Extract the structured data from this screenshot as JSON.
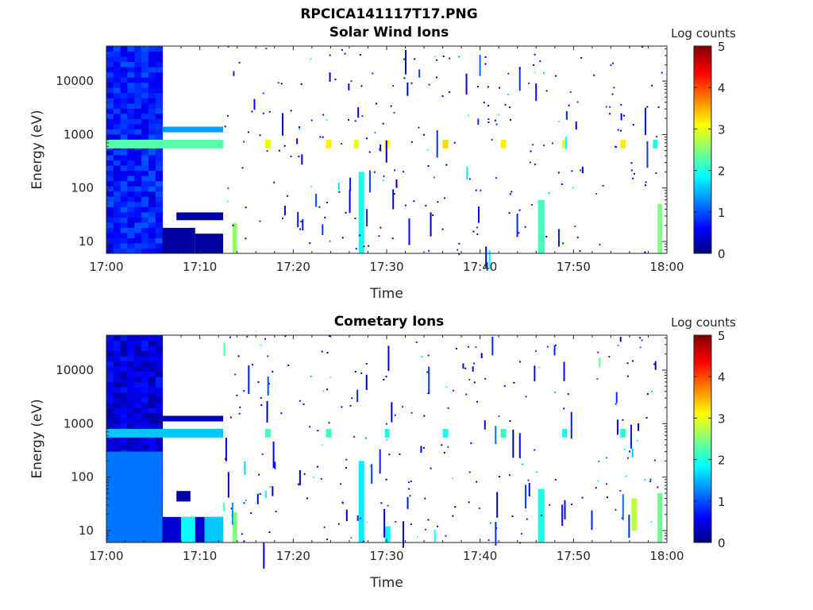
{
  "figure": {
    "title": "RPCICA141117T17.PNG"
  },
  "colors": {
    "colormap": "jet",
    "axes": "#262626",
    "background": "#ffffff"
  },
  "chart_data": [
    {
      "type": "heatmap",
      "title": "Solar Wind Ions",
      "xlabel": "Time",
      "ylabel": "Energy (eV)",
      "xticks": [
        "17:00",
        "17:10",
        "17:20",
        "17:30",
        "17:40",
        "17:50",
        "18:00"
      ],
      "xlim": [
        "17:00",
        "18:00"
      ],
      "yticks": [
        "10",
        "100",
        "1000",
        "10000"
      ],
      "ylim": [
        6,
        45000
      ],
      "yscale": "log",
      "colorbar": {
        "label": "Log counts",
        "ticks": [
          "0",
          "1",
          "2",
          "3",
          "4",
          "5"
        ],
        "range": [
          0,
          5
        ]
      },
      "features": [
        {
          "t0": 0.0,
          "t1": 6.0,
          "e0": 6,
          "e1": 45000,
          "v": 0.7,
          "kind": "block"
        },
        {
          "t0": 0.0,
          "t1": 6.0,
          "e0": 600,
          "e1": 750,
          "v": 2.0
        },
        {
          "t0": 0.0,
          "t1": 12.5,
          "e0": 550,
          "e1": 800,
          "v": 2.3
        },
        {
          "t0": 6.0,
          "t1": 12.5,
          "e0": 1100,
          "e1": 1400,
          "v": 1.4
        },
        {
          "t0": 6.0,
          "t1": 9.5,
          "e0": 6,
          "e1": 18,
          "v": 0.15
        },
        {
          "t0": 9.5,
          "t1": 12.5,
          "e0": 6,
          "e1": 14,
          "v": 0.15
        },
        {
          "t0": 7.5,
          "t1": 12.5,
          "e0": 25,
          "e1": 35,
          "v": 0.2
        },
        {
          "t0": 17.0,
          "t1": 17.6,
          "e0": 550,
          "e1": 800,
          "v": 3.0
        },
        {
          "t0": 23.5,
          "t1": 24.1,
          "e0": 550,
          "e1": 800,
          "v": 3.2
        },
        {
          "t0": 26.5,
          "t1": 27.0,
          "e0": 550,
          "e1": 800,
          "v": 3.0
        },
        {
          "t0": 29.8,
          "t1": 30.3,
          "e0": 550,
          "e1": 800,
          "v": 3.1
        },
        {
          "t0": 36.0,
          "t1": 36.6,
          "e0": 550,
          "e1": 800,
          "v": 3.3
        },
        {
          "t0": 42.2,
          "t1": 42.8,
          "e0": 550,
          "e1": 800,
          "v": 3.2
        },
        {
          "t0": 48.8,
          "t1": 49.3,
          "e0": 550,
          "e1": 800,
          "v": 3.0
        },
        {
          "t0": 55.0,
          "t1": 55.6,
          "e0": 550,
          "e1": 800,
          "v": 3.2
        },
        {
          "t0": 58.5,
          "t1": 59.0,
          "e0": 550,
          "e1": 800,
          "v": 2.0
        },
        {
          "t0": 27.0,
          "t1": 27.6,
          "e0": 6,
          "e1": 200,
          "v": 2.0
        },
        {
          "t0": 46.2,
          "t1": 46.9,
          "e0": 6,
          "e1": 60,
          "v": 2.2
        },
        {
          "t0": 13.5,
          "t1": 14.0,
          "e0": 6,
          "e1": 22,
          "v": 2.6
        },
        {
          "t0": 59.0,
          "t1": 59.5,
          "e0": 6,
          "e1": 50,
          "v": 2.5
        }
      ]
    },
    {
      "type": "heatmap",
      "title": "Cometary Ions",
      "xlabel": "Time",
      "ylabel": "Energy (eV)",
      "xticks": [
        "17:00",
        "17:10",
        "17:20",
        "17:30",
        "17:40",
        "17:50",
        "18:00"
      ],
      "xlim": [
        "17:00",
        "18:00"
      ],
      "yticks": [
        "10",
        "100",
        "1000",
        "10000"
      ],
      "ylim": [
        6,
        45000
      ],
      "yscale": "log",
      "colorbar": {
        "label": "Log counts",
        "ticks": [
          "0",
          "1",
          "2",
          "3",
          "4",
          "5"
        ],
        "range": [
          0,
          5
        ]
      },
      "features": [
        {
          "t0": 0.0,
          "t1": 6.0,
          "e0": 6,
          "e1": 45000,
          "v": 0.4,
          "kind": "block"
        },
        {
          "t0": 0.0,
          "t1": 6.0,
          "e0": 6,
          "e1": 300,
          "v": 1.2
        },
        {
          "t0": 0.0,
          "t1": 12.5,
          "e0": 550,
          "e1": 800,
          "v": 1.6
        },
        {
          "t0": 6.0,
          "t1": 12.5,
          "e0": 1100,
          "e1": 1400,
          "v": 0.3
        },
        {
          "t0": 6.0,
          "t1": 12.5,
          "e0": 6,
          "e1": 18,
          "v": 0.4
        },
        {
          "t0": 8.0,
          "t1": 9.5,
          "e0": 6,
          "e1": 18,
          "v": 1.9
        },
        {
          "t0": 10.5,
          "t1": 12.5,
          "e0": 6,
          "e1": 18,
          "v": 1.6
        },
        {
          "t0": 7.5,
          "t1": 9.0,
          "e0": 35,
          "e1": 55,
          "v": 0.2
        },
        {
          "t0": 17.0,
          "t1": 17.6,
          "e0": 550,
          "e1": 800,
          "v": 2.2
        },
        {
          "t0": 23.5,
          "t1": 24.1,
          "e0": 550,
          "e1": 800,
          "v": 2.2
        },
        {
          "t0": 29.8,
          "t1": 30.3,
          "e0": 550,
          "e1": 800,
          "v": 2.0
        },
        {
          "t0": 36.0,
          "t1": 36.6,
          "e0": 550,
          "e1": 800,
          "v": 2.0
        },
        {
          "t0": 42.2,
          "t1": 42.8,
          "e0": 550,
          "e1": 800,
          "v": 2.1
        },
        {
          "t0": 48.8,
          "t1": 49.3,
          "e0": 550,
          "e1": 800,
          "v": 1.9
        },
        {
          "t0": 55.0,
          "t1": 55.6,
          "e0": 550,
          "e1": 800,
          "v": 2.1
        },
        {
          "t0": 27.0,
          "t1": 27.6,
          "e0": 6,
          "e1": 200,
          "v": 1.8
        },
        {
          "t0": 29.8,
          "t1": 30.4,
          "e0": 6,
          "e1": 12,
          "v": 1.9
        },
        {
          "t0": 46.2,
          "t1": 46.9,
          "e0": 6,
          "e1": 60,
          "v": 2.0
        },
        {
          "t0": 56.2,
          "t1": 56.8,
          "e0": 10,
          "e1": 40,
          "v": 2.8
        },
        {
          "t0": 13.5,
          "t1": 14.0,
          "e0": 6,
          "e1": 22,
          "v": 2.5
        },
        {
          "t0": 59.0,
          "t1": 59.5,
          "e0": 6,
          "e1": 50,
          "v": 2.4
        }
      ]
    }
  ]
}
